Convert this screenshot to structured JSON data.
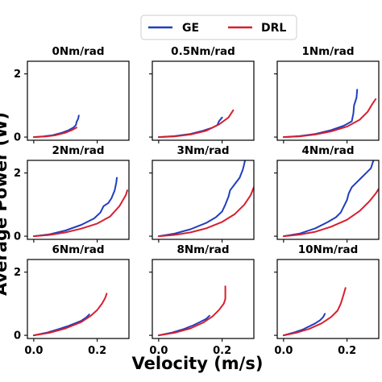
{
  "chart_data": {
    "type": "line",
    "layout": "3x3 small multiples",
    "xlabel": "Velocity (m/s)",
    "ylabel": "Average Power (W)",
    "xlim": [
      -0.02,
      0.3
    ],
    "ylim": [
      -0.1,
      2.4
    ],
    "xticks": [
      0.0,
      0.2
    ],
    "xtick_labels": [
      "0.0",
      "0.2"
    ],
    "yticks": [
      0,
      2
    ],
    "ytick_labels": [
      "0",
      "2"
    ],
    "legend": {
      "placement": "top-center",
      "entries": [
        {
          "name": "GE",
          "color": "#1f3fbf"
        },
        {
          "name": "DRL",
          "color": "#d62030"
        }
      ]
    },
    "series_colors": {
      "GE": "#1f3fbf",
      "DRL": "#d62030"
    },
    "panels": [
      {
        "title": "0Nm/rad",
        "series": [
          {
            "name": "GE",
            "points": [
              [
                0.0,
                0.0
              ],
              [
                0.03,
                0.02
              ],
              [
                0.06,
                0.06
              ],
              [
                0.09,
                0.14
              ],
              [
                0.11,
                0.22
              ],
              [
                0.125,
                0.3
              ],
              [
                0.133,
                0.38
              ],
              [
                0.135,
                0.48
              ],
              [
                0.14,
                0.58
              ],
              [
                0.142,
                0.68
              ]
            ]
          },
          {
            "name": "DRL",
            "points": [
              [
                0.0,
                0.0
              ],
              [
                0.04,
                0.02
              ],
              [
                0.07,
                0.06
              ],
              [
                0.1,
                0.14
              ],
              [
                0.12,
                0.22
              ],
              [
                0.135,
                0.3
              ]
            ]
          }
        ]
      },
      {
        "title": "0.5Nm/rad",
        "series": [
          {
            "name": "GE",
            "points": [
              [
                0.0,
                0.0
              ],
              [
                0.05,
                0.03
              ],
              [
                0.1,
                0.1
              ],
              [
                0.14,
                0.2
              ],
              [
                0.17,
                0.3
              ],
              [
                0.185,
                0.38
              ],
              [
                0.19,
                0.5
              ],
              [
                0.2,
                0.62
              ]
            ]
          },
          {
            "name": "DRL",
            "points": [
              [
                0.0,
                0.0
              ],
              [
                0.05,
                0.02
              ],
              [
                0.1,
                0.08
              ],
              [
                0.15,
                0.2
              ],
              [
                0.19,
                0.4
              ],
              [
                0.22,
                0.62
              ],
              [
                0.235,
                0.85
              ]
            ]
          }
        ]
      },
      {
        "title": "1Nm/rad",
        "series": [
          {
            "name": "GE",
            "points": [
              [
                0.0,
                0.0
              ],
              [
                0.05,
                0.03
              ],
              [
                0.1,
                0.1
              ],
              [
                0.15,
                0.22
              ],
              [
                0.19,
                0.36
              ],
              [
                0.215,
                0.5
              ],
              [
                0.22,
                0.75
              ],
              [
                0.222,
                1.0
              ],
              [
                0.23,
                1.25
              ],
              [
                0.232,
                1.5
              ]
            ]
          },
          {
            "name": "DRL",
            "points": [
              [
                0.0,
                0.0
              ],
              [
                0.05,
                0.02
              ],
              [
                0.1,
                0.08
              ],
              [
                0.15,
                0.18
              ],
              [
                0.2,
                0.33
              ],
              [
                0.24,
                0.55
              ],
              [
                0.265,
                0.8
              ],
              [
                0.28,
                1.05
              ],
              [
                0.29,
                1.2
              ]
            ]
          }
        ]
      },
      {
        "title": "2Nm/rad",
        "series": [
          {
            "name": "GE",
            "points": [
              [
                0.0,
                0.0
              ],
              [
                0.05,
                0.06
              ],
              [
                0.1,
                0.18
              ],
              [
                0.15,
                0.36
              ],
              [
                0.19,
                0.56
              ],
              [
                0.21,
                0.75
              ],
              [
                0.22,
                0.95
              ],
              [
                0.235,
                1.05
              ],
              [
                0.245,
                1.2
              ],
              [
                0.255,
                1.45
              ],
              [
                0.26,
                1.7
              ],
              [
                0.262,
                1.85
              ]
            ]
          },
          {
            "name": "DRL",
            "points": [
              [
                0.0,
                0.0
              ],
              [
                0.05,
                0.04
              ],
              [
                0.1,
                0.12
              ],
              [
                0.15,
                0.24
              ],
              [
                0.2,
                0.4
              ],
              [
                0.24,
                0.62
              ],
              [
                0.27,
                0.95
              ],
              [
                0.29,
                1.3
              ],
              [
                0.295,
                1.45
              ]
            ]
          }
        ]
      },
      {
        "title": "3Nm/rad",
        "series": [
          {
            "name": "GE",
            "points": [
              [
                0.0,
                0.0
              ],
              [
                0.05,
                0.08
              ],
              [
                0.1,
                0.22
              ],
              [
                0.15,
                0.42
              ],
              [
                0.18,
                0.6
              ],
              [
                0.2,
                0.78
              ],
              [
                0.21,
                1.0
              ],
              [
                0.22,
                1.25
              ],
              [
                0.225,
                1.45
              ],
              [
                0.24,
                1.65
              ],
              [
                0.255,
                1.85
              ],
              [
                0.265,
                2.1
              ],
              [
                0.27,
                2.3
              ],
              [
                0.272,
                2.4
              ]
            ]
          },
          {
            "name": "DRL",
            "points": [
              [
                0.0,
                0.0
              ],
              [
                0.05,
                0.04
              ],
              [
                0.1,
                0.12
              ],
              [
                0.15,
                0.25
              ],
              [
                0.2,
                0.45
              ],
              [
                0.24,
                0.7
              ],
              [
                0.27,
                1.0
              ],
              [
                0.29,
                1.3
              ],
              [
                0.3,
                1.55
              ]
            ]
          }
        ]
      },
      {
        "title": "4Nm/rad",
        "series": [
          {
            "name": "GE",
            "points": [
              [
                0.0,
                0.0
              ],
              [
                0.05,
                0.08
              ],
              [
                0.1,
                0.25
              ],
              [
                0.14,
                0.45
              ],
              [
                0.165,
                0.6
              ],
              [
                0.18,
                0.75
              ],
              [
                0.19,
                0.95
              ],
              [
                0.2,
                1.15
              ],
              [
                0.205,
                1.35
              ],
              [
                0.215,
                1.55
              ],
              [
                0.23,
                1.7
              ],
              [
                0.245,
                1.85
              ],
              [
                0.26,
                2.0
              ],
              [
                0.275,
                2.15
              ],
              [
                0.28,
                2.3
              ],
              [
                0.285,
                2.45
              ]
            ]
          },
          {
            "name": "DRL",
            "points": [
              [
                0.0,
                0.0
              ],
              [
                0.05,
                0.05
              ],
              [
                0.1,
                0.14
              ],
              [
                0.15,
                0.3
              ],
              [
                0.2,
                0.52
              ],
              [
                0.24,
                0.8
              ],
              [
                0.27,
                1.1
              ],
              [
                0.29,
                1.35
              ],
              [
                0.3,
                1.5
              ]
            ]
          }
        ]
      },
      {
        "title": "6Nm/rad",
        "series": [
          {
            "name": "GE",
            "points": [
              [
                0.0,
                0.0
              ],
              [
                0.04,
                0.08
              ],
              [
                0.08,
                0.2
              ],
              [
                0.11,
                0.3
              ],
              [
                0.13,
                0.38
              ],
              [
                0.15,
                0.46
              ],
              [
                0.165,
                0.56
              ],
              [
                0.175,
                0.66
              ]
            ]
          },
          {
            "name": "DRL",
            "points": [
              [
                0.0,
                0.0
              ],
              [
                0.05,
                0.08
              ],
              [
                0.1,
                0.22
              ],
              [
                0.15,
                0.42
              ],
              [
                0.18,
                0.62
              ],
              [
                0.2,
                0.8
              ],
              [
                0.215,
                1.0
              ],
              [
                0.225,
                1.18
              ],
              [
                0.23,
                1.32
              ]
            ]
          }
        ]
      },
      {
        "title": "8Nm/rad",
        "series": [
          {
            "name": "GE",
            "points": [
              [
                0.0,
                0.0
              ],
              [
                0.04,
                0.08
              ],
              [
                0.08,
                0.2
              ],
              [
                0.11,
                0.32
              ],
              [
                0.13,
                0.42
              ],
              [
                0.15,
                0.52
              ],
              [
                0.16,
                0.62
              ]
            ]
          },
          {
            "name": "DRL",
            "points": [
              [
                0.0,
                0.0
              ],
              [
                0.05,
                0.08
              ],
              [
                0.1,
                0.22
              ],
              [
                0.14,
                0.4
              ],
              [
                0.17,
                0.6
              ],
              [
                0.19,
                0.8
              ],
              [
                0.205,
                1.0
              ],
              [
                0.21,
                1.15
              ],
              [
                0.21,
                1.55
              ]
            ]
          }
        ]
      },
      {
        "title": "10Nm/rad",
        "series": [
          {
            "name": "GE",
            "points": [
              [
                0.0,
                0.0
              ],
              [
                0.03,
                0.08
              ],
              [
                0.06,
                0.18
              ],
              [
                0.08,
                0.28
              ],
              [
                0.1,
                0.38
              ],
              [
                0.115,
                0.48
              ],
              [
                0.125,
                0.58
              ],
              [
                0.13,
                0.68
              ]
            ]
          },
          {
            "name": "DRL",
            "points": [
              [
                0.0,
                0.0
              ],
              [
                0.04,
                0.08
              ],
              [
                0.08,
                0.2
              ],
              [
                0.12,
                0.38
              ],
              [
                0.15,
                0.58
              ],
              [
                0.17,
                0.78
              ],
              [
                0.18,
                1.0
              ],
              [
                0.188,
                1.25
              ],
              [
                0.195,
                1.5
              ]
            ]
          }
        ]
      }
    ]
  }
}
